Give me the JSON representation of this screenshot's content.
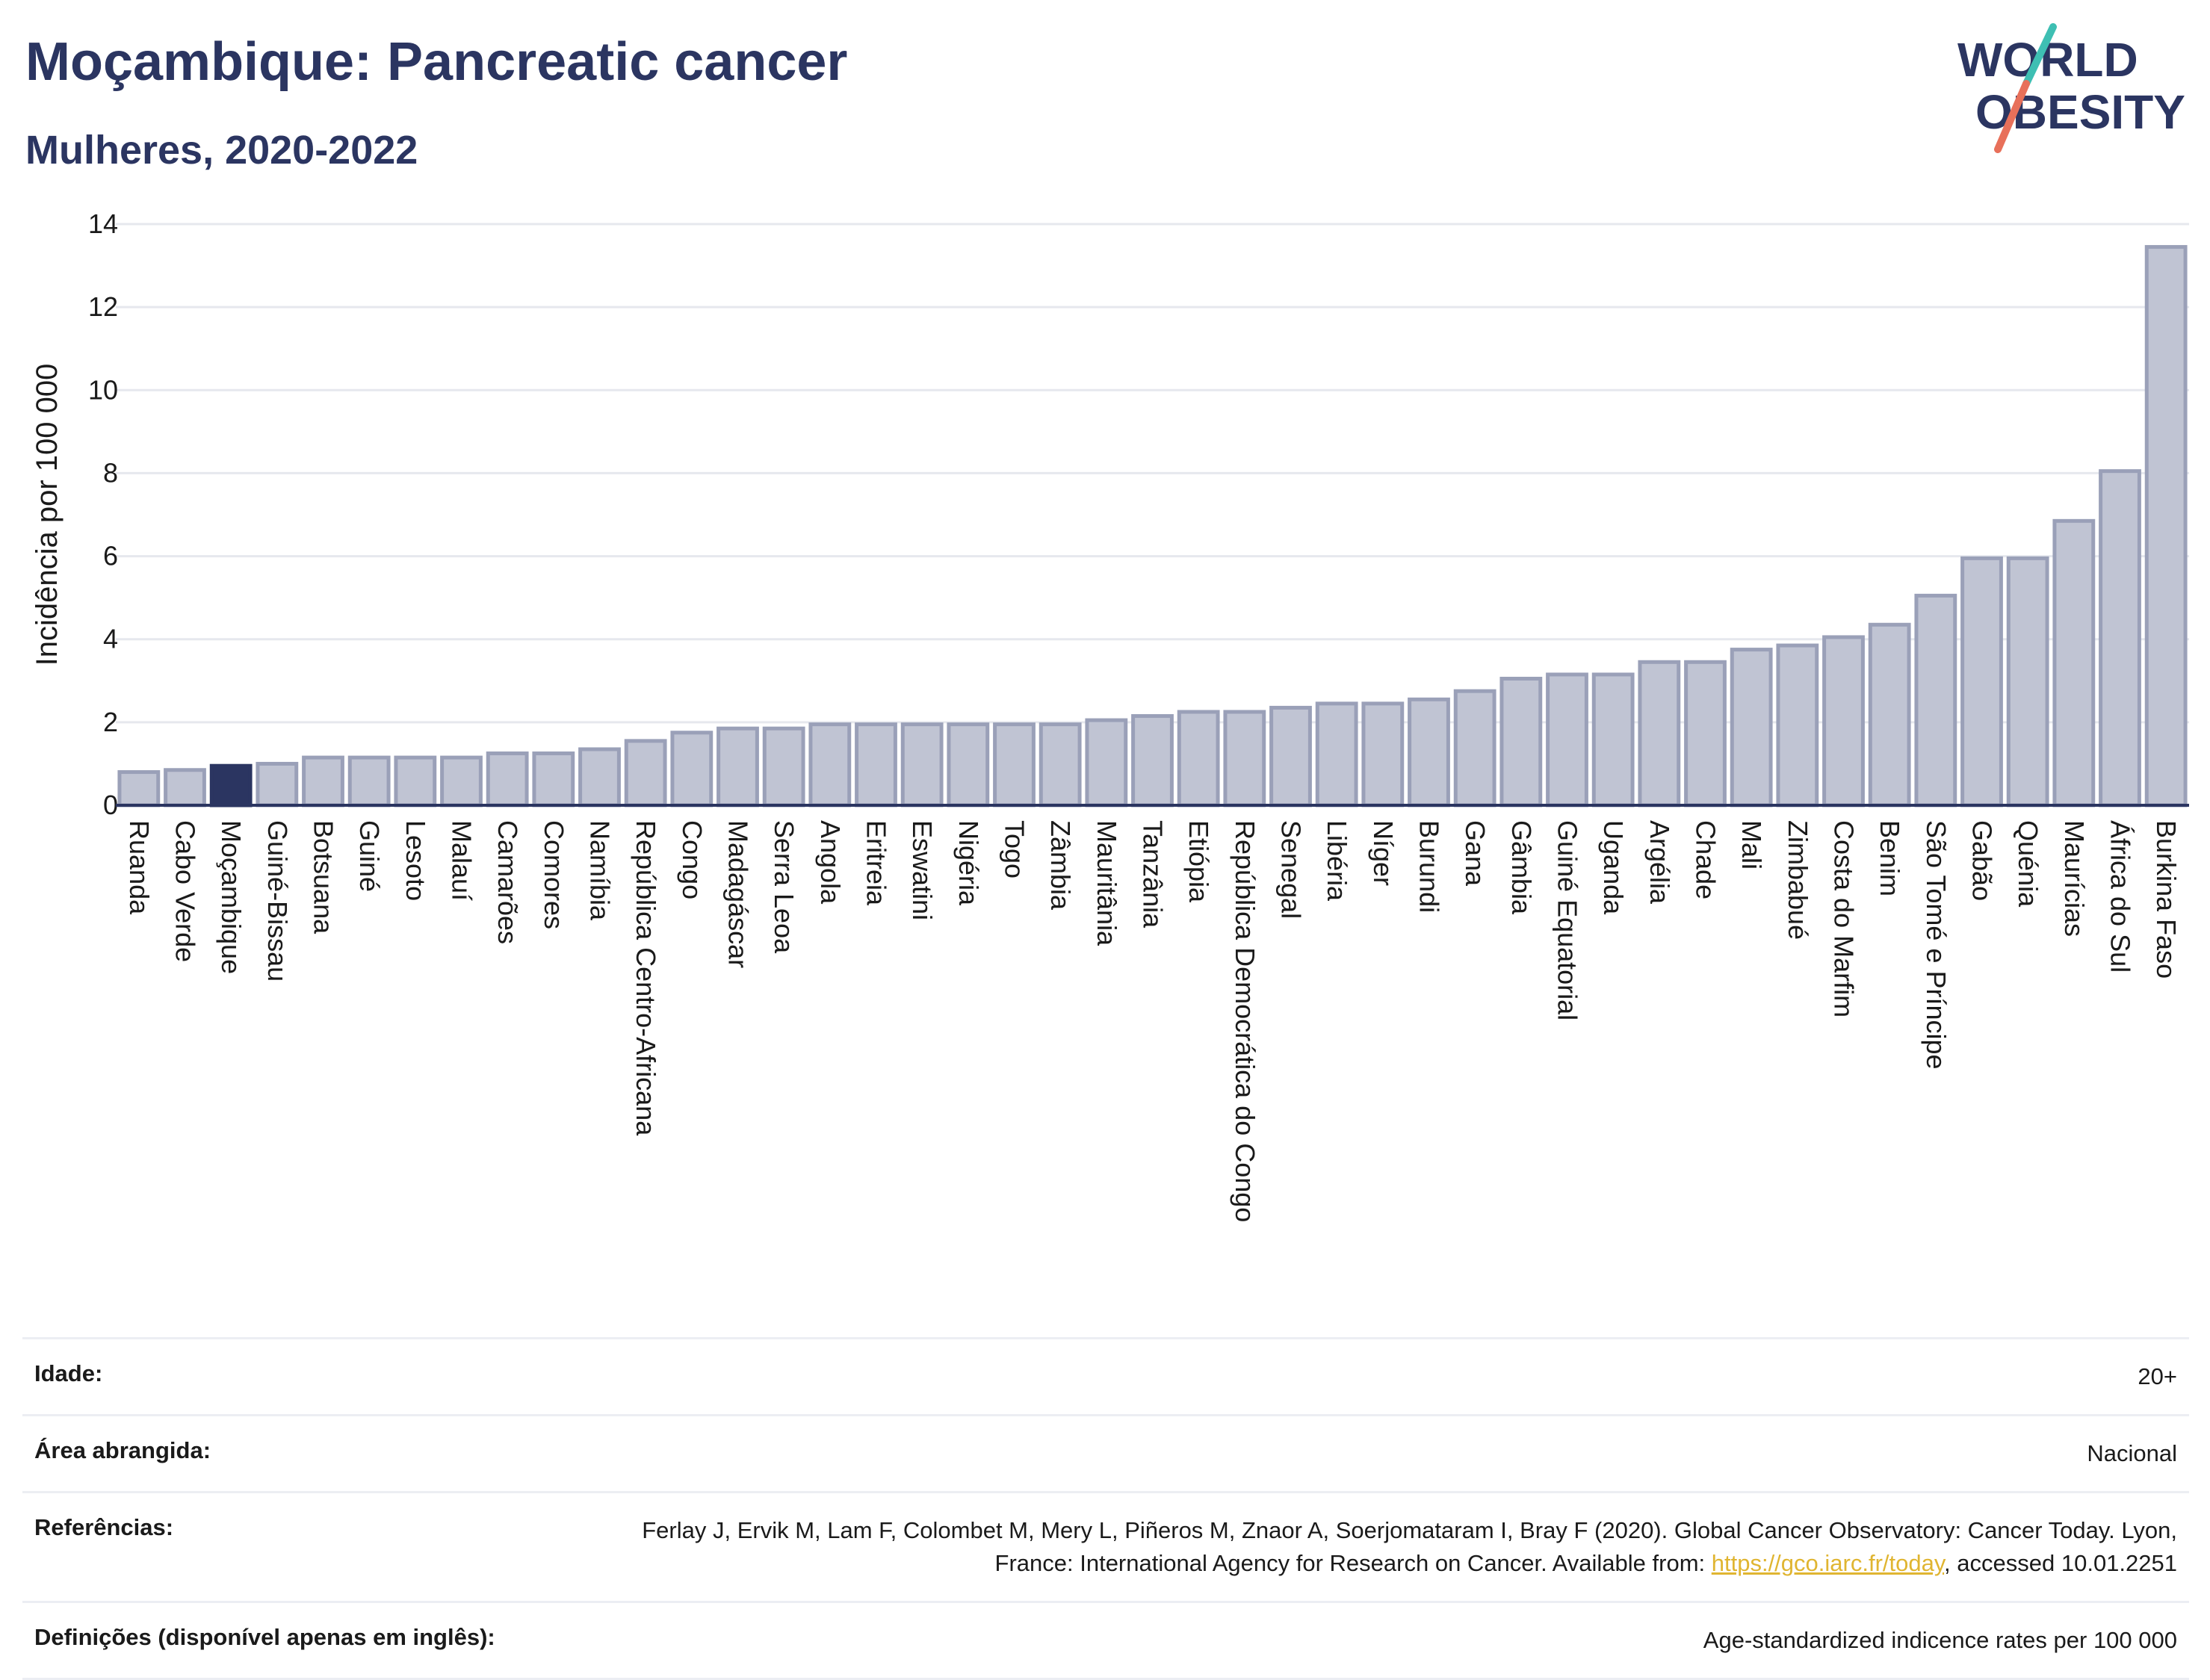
{
  "title": "Moçambique: Pancreatic cancer",
  "subtitle": "Mulheres, 2020-2022",
  "logo": {
    "line1": "WORLD",
    "line2": "OBESITY"
  },
  "colors": {
    "highlight": "#2b3561",
    "bar_fill": "#c0c4d3",
    "bar_stroke": "#9aa0b8",
    "grid": "#e6e8ee",
    "text": "#2b3561"
  },
  "chart_data": {
    "type": "bar",
    "ylabel": "Incidência por 100 000",
    "ylim": [
      0,
      14
    ],
    "yticks": [
      0,
      2,
      4,
      6,
      8,
      10,
      12,
      14
    ],
    "highlight": "Moçambique",
    "grid": true,
    "categories": [
      "Ruanda",
      "Cabo Verde",
      "Moçambique",
      "Guiné-Bissau",
      "Botsuana",
      "Guiné",
      "Lesoto",
      "Malauí",
      "Camarões",
      "Comores",
      "Namíbia",
      "República Centro-Africana",
      "Congo",
      "Madagáscar",
      "Serra Leoa",
      "Angola",
      "Eritreia",
      "Eswatini",
      "Nigéria",
      "Togo",
      "Zâmbia",
      "Mauritânia",
      "Tanzânia",
      "Etiópia",
      "República Democrática do Congo",
      "Senegal",
      "Libéria",
      "Níger",
      "Burundi",
      "Gana",
      "Gâmbia",
      "Guiné Equatorial",
      "Uganda",
      "Argélia",
      "Chade",
      "Mali",
      "Zimbabué",
      "Costa do Marfim",
      "Benim",
      "São Tomé e Príncipe",
      "Gabão",
      "Quénia",
      "Maurícias",
      "África do Sul",
      "Burkina Faso"
    ],
    "values": [
      0.8,
      0.85,
      0.95,
      1.0,
      1.15,
      1.15,
      1.15,
      1.15,
      1.25,
      1.25,
      1.35,
      1.55,
      1.75,
      1.85,
      1.85,
      1.95,
      1.95,
      1.95,
      1.95,
      1.95,
      1.95,
      2.05,
      2.15,
      2.25,
      2.25,
      2.35,
      2.45,
      2.45,
      2.55,
      2.75,
      3.05,
      3.15,
      3.15,
      3.45,
      3.45,
      3.75,
      3.85,
      4.05,
      4.35,
      5.05,
      5.95,
      5.95,
      6.85,
      8.05,
      13.45
    ]
  },
  "info": [
    {
      "label": "Idade:",
      "value": "20+"
    },
    {
      "label": "Área abrangida:",
      "value": "Nacional"
    },
    {
      "label": "Referências:",
      "value": "Ferlay J, Ervik M, Lam F, Colombet M, Mery L, Piñeros M, Znaor A, Soerjomataram I, Bray F (2020). Global Cancer Observatory: Cancer Today. Lyon, France: International Agency for Research on Cancer. Available from: ",
      "link": "https://gco.iarc.fr/today",
      "suffix": ", accessed 10.01.2251"
    },
    {
      "label": "Definições (disponível apenas em inglês):",
      "value": "Age-standardized indicence rates per 100 000"
    }
  ]
}
